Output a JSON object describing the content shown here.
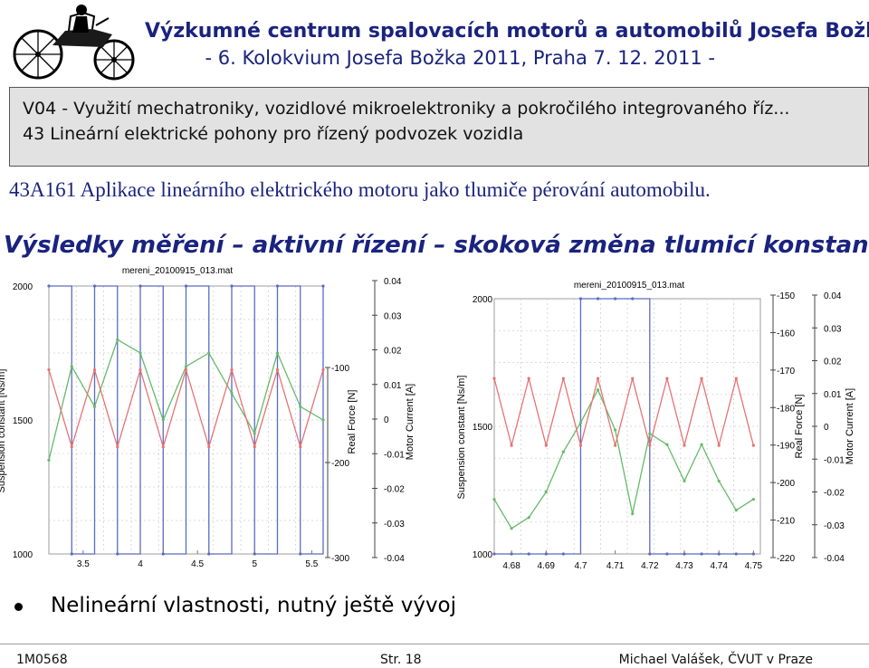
{
  "header": {
    "title": "Výzkumné centrum spalovacích motorů a automobilů Josefa Božka",
    "subtitle": "- 6. Kolokvium Josefa Božka 2011, Praha 7. 12. 2011 -"
  },
  "topic": {
    "line1": "V04 - Využití mechatroniky, vozidlové mikroelektroniky a pokročilého integrovaného říz...",
    "line2": "43 Lineární elektrické pohony pro řízený podvozek vozidla"
  },
  "subtopic": "43A161 Aplikace lineárního elektrického motoru jako tlumiče pérování automobilu.",
  "section_title": "Výsledky měření – aktivní řízení – skoková změna tlumicí konstanty",
  "bullet": "Nelineární vlastnosti, nutný ještě vývoj",
  "footer": {
    "left": "1M0568",
    "center": "Str. 18",
    "right": "Michael Valášek, ČVUT v Praze"
  },
  "colors": {
    "title_blue": "#1a237e",
    "series_damping": "#5c6bc0",
    "series_force": "#66bb6a",
    "series_current": "#e57373"
  },
  "chart_data": [
    {
      "type": "line",
      "title": "mereni_20100915_013.mat",
      "x": [
        3.2,
        3.4,
        3.6,
        3.8,
        4.0,
        4.2,
        4.4,
        4.6,
        4.8,
        5.0,
        5.2,
        5.4,
        5.6
      ],
      "x_ticks": [
        "3.5",
        "4",
        "4.5",
        "5",
        "5.5"
      ],
      "xlim": [
        3.2,
        5.6
      ],
      "axes": {
        "damping": {
          "label": "Suspension constant [Ns/m]",
          "ticks": [
            "2000",
            "1500",
            "1000"
          ],
          "ylim": [
            1000,
            2000
          ]
        },
        "force": {
          "label": "Real Force [N]",
          "ticks": [
            "-100",
            "-200",
            "-300"
          ],
          "ylim": [
            -300,
            -100
          ]
        },
        "current": {
          "label": "Motor Current [A]",
          "ticks": [
            "0.04",
            "0.03",
            "0.02",
            "0.01",
            "0",
            "-0.01",
            "-0.02",
            "-0.03",
            "-0.04"
          ],
          "ylim": [
            -0.04,
            0.04
          ]
        }
      },
      "series": [
        {
          "axis": "damping",
          "values": [
            2000,
            1000,
            2000,
            1000,
            2000,
            1000,
            2000,
            1000,
            2000,
            1000,
            2000,
            1000,
            2000
          ]
        },
        {
          "axis": "force",
          "values": [
            -230,
            -160,
            -190,
            -140,
            -150,
            -200,
            -160,
            -150,
            -180,
            -210,
            -150,
            -190,
            -200
          ]
        },
        {
          "axis": "current",
          "values": [
            0.015,
            -0.008,
            0.015,
            -0.008,
            0.015,
            -0.008,
            0.015,
            -0.008,
            0.015,
            -0.008,
            0.015,
            -0.008,
            0.015
          ]
        }
      ]
    },
    {
      "type": "line",
      "title": "mereni_20100915_013.mat",
      "x": [
        4.675,
        4.68,
        4.685,
        4.69,
        4.695,
        4.7,
        4.705,
        4.71,
        4.715,
        4.72,
        4.725,
        4.73,
        4.735,
        4.74,
        4.745,
        4.75
      ],
      "x_ticks": [
        "4.68",
        "4.69",
        "4.7",
        "4.71",
        "4.72",
        "4.73",
        "4.74",
        "4.75"
      ],
      "xlim": [
        4.675,
        4.752
      ],
      "axes": {
        "damping": {
          "label": "Suspension constant [Ns/m]",
          "ticks": [
            "2000",
            "1500",
            "1000"
          ],
          "ylim": [
            1000,
            2000
          ]
        },
        "force": {
          "label": "Real Force [N]",
          "ticks": [
            "-150",
            "-160",
            "-170",
            "-180",
            "-190",
            "-200",
            "-210",
            "-220"
          ],
          "ylim": [
            -220,
            -150
          ]
        },
        "current": {
          "label": "Motor Current [A]",
          "ticks": [
            "0.04",
            "0.03",
            "0.02",
            "0.01",
            "0",
            "-0.01",
            "-0.02",
            "-0.03",
            "-0.04"
          ],
          "ylim": [
            -0.04,
            0.04
          ]
        }
      },
      "series": [
        {
          "axis": "damping",
          "values": [
            1000,
            1000,
            1000,
            1000,
            1000,
            2000,
            2000,
            2000,
            2000,
            1000,
            1000,
            1000,
            1000,
            1000,
            1000,
            1000
          ]
        },
        {
          "axis": "force",
          "values": [
            -205,
            -213,
            -210,
            -203,
            -192,
            -184,
            -175,
            -186,
            -209,
            -187,
            -190,
            -200,
            -190,
            -200,
            -208,
            -205
          ]
        },
        {
          "axis": "current",
          "values": [
            0.015,
            -0.006,
            0.015,
            -0.006,
            0.015,
            -0.006,
            0.015,
            -0.006,
            0.015,
            -0.006,
            0.015,
            -0.006,
            0.015,
            -0.006,
            0.015,
            -0.006
          ]
        }
      ]
    }
  ]
}
